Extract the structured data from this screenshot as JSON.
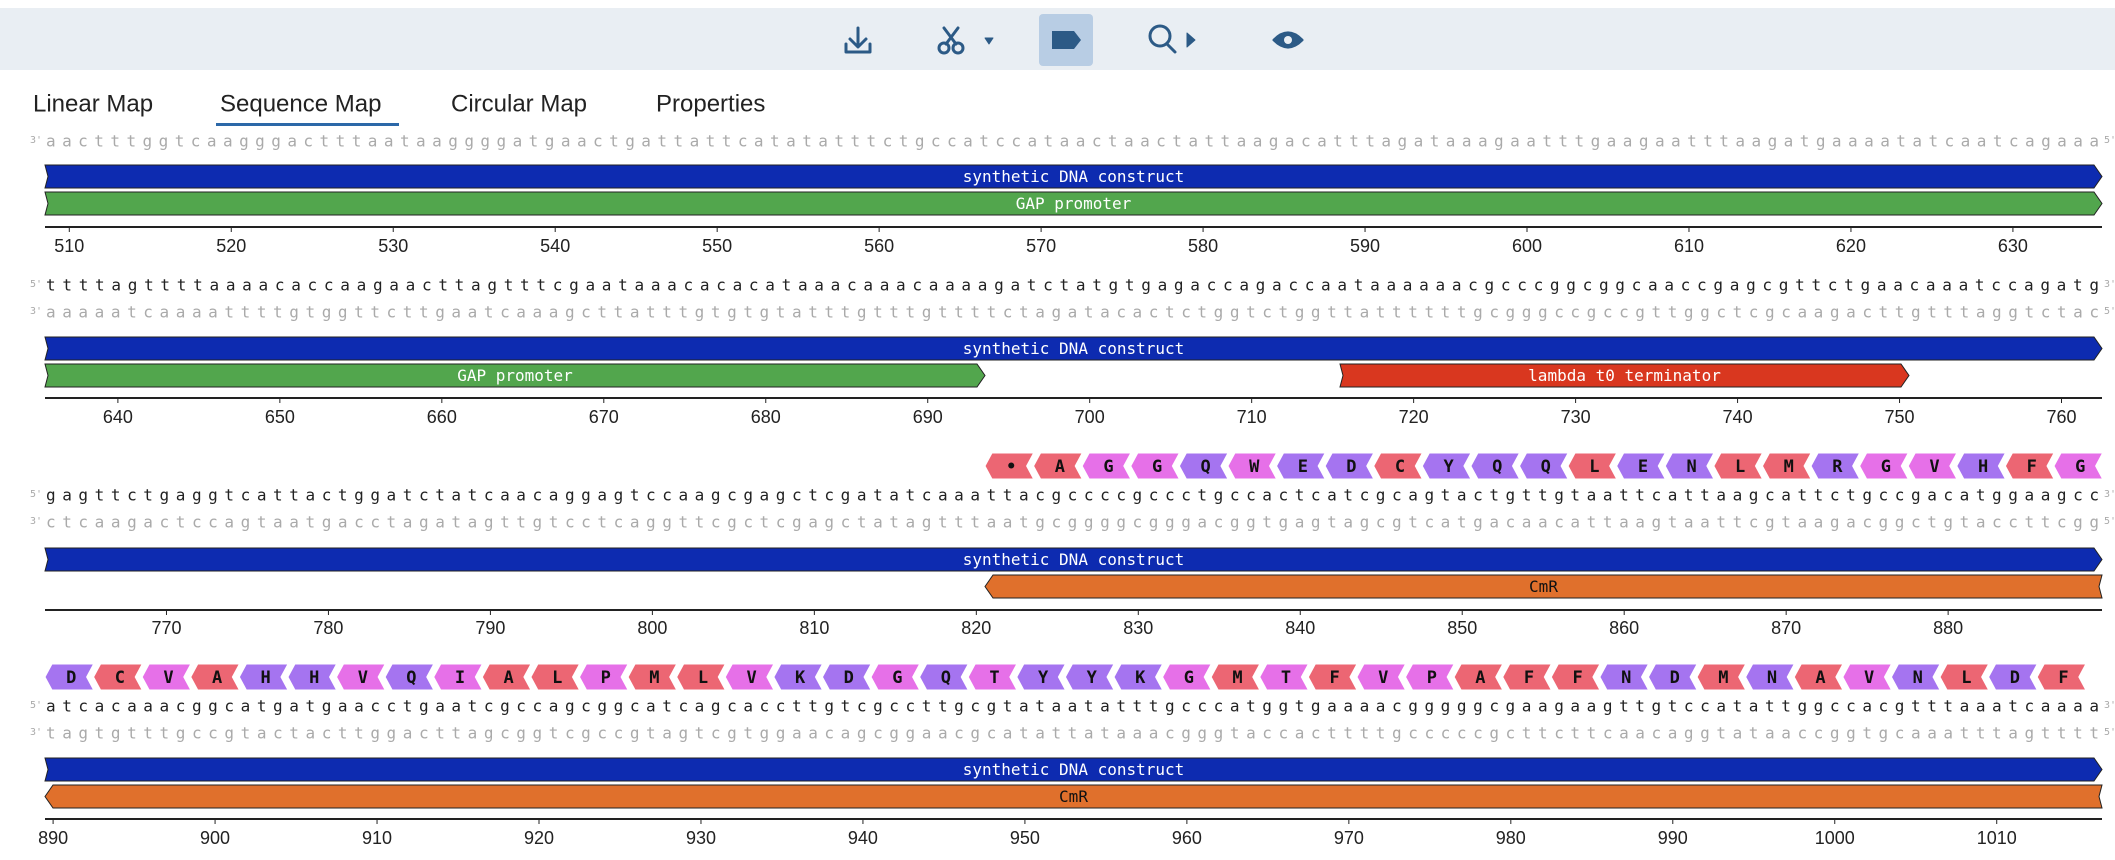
{
  "tabs": [
    "Linear Map",
    "Sequence Map",
    "Circular Map",
    "Properties"
  ],
  "strand_labels": {
    "five": "5'",
    "three": "3'"
  },
  "rows": [
    {
      "top": null,
      "bottom": "aactttggtcaagggactttaataaggggatgaactgattattcatatatttctgccatccataactaactattaagacatttagataaagaatttgaagaatttaagatgaaaatatcaatcagaaa",
      "annotations": [
        {
          "label": "synthetic DNA construct",
          "color": "#0d2bb0"
        },
        {
          "label": "GAP promoter",
          "color": "#52a64d"
        }
      ],
      "ticks": [
        510,
        520,
        530,
        540,
        550,
        560,
        570,
        580,
        590,
        600,
        610,
        620,
        630
      ],
      "amino_acids": []
    },
    {
      "top": "ttttagttttaaaacaccaagaacttagtttcgaataaacacacataaacaaacaaaagatctatgtgagaccagaccaataaaaaacgcccggcggcaaccgagcgttctgaacaaatccagatg",
      "bottom": "aaaaatcaaaattttgtggttcttgaatcaaagcttatttgtgtgtatttgtttgttttctagatacactctggtctggttattttttgcgggccgccgttggctcgcaagacttgtttaggtctac",
      "annotations": [
        {
          "label": "synthetic DNA construct",
          "color": "#0d2bb0"
        },
        {
          "label": "GAP promoter",
          "color": "#52a64d"
        },
        {
          "label": "lambda t0 terminator",
          "color": "#d9371f"
        }
      ],
      "ticks": [
        640,
        650,
        660,
        670,
        680,
        690,
        700,
        710,
        720,
        730,
        740,
        750,
        760
      ],
      "amino_acids": []
    },
    {
      "top": "gagttctgaggtcattactggatctatcaacaggagtccaagcgagctcgatatcaaattacgccccgccctgccactcatcgcagtactgttgtaattcattaagcattctgccgacatggaagcc",
      "bottom": "ctcaagactccagtaatgacctagatagttgtcctcaggttcgctcgagctatagtttaatgcggggcgggacggtgagtagcgtcatgacaacattaagtaattcgtaagacggctgtaccttcgg",
      "annotations": [
        {
          "label": "synthetic DNA construct",
          "color": "#0d2bb0"
        },
        {
          "label": "CmR",
          "color": "#e0702c"
        }
      ],
      "ticks": [
        770,
        780,
        790,
        800,
        810,
        820,
        830,
        840,
        850,
        860,
        870,
        880
      ],
      "amino_acids": [
        "•",
        "A",
        "G",
        "G",
        "Q",
        "W",
        "E",
        "D",
        "C",
        "Y",
        "Q",
        "Q",
        "L",
        "E",
        "N",
        "L",
        "M",
        "R",
        "G",
        "V",
        "H",
        "F",
        "G"
      ]
    },
    {
      "top": "atcacaaacggcatgatgaacctgaatcgccagcggcatcagcaccttgtcgccttgcgtataatatttgcccatggtgaaaacgggggcgaagaagttgtccatattggccacgtttaaatcaaaa",
      "bottom": "tagtgtttgccgtactacttggacttagcggtcgccgtagtcgtggaacagcggaacgcatattataaacgggtaccacttttgcccccgcttcttcaacaggtataaccggtgcaaatttagtttt",
      "annotations": [
        {
          "label": "synthetic DNA construct",
          "color": "#0d2bb0"
        },
        {
          "label": "CmR",
          "color": "#e0702c"
        }
      ],
      "ticks": [
        890,
        900,
        910,
        920,
        930,
        940,
        950,
        960,
        970,
        980,
        990,
        1000,
        1010
      ],
      "amino_acids": [
        "D",
        "C",
        "V",
        "A",
        "H",
        "H",
        "V",
        "Q",
        "I",
        "A",
        "L",
        "P",
        "M",
        "L",
        "V",
        "K",
        "D",
        "G",
        "Q",
        "T",
        "Y",
        "Y",
        "K",
        "G",
        "M",
        "T",
        "F",
        "V",
        "P",
        "A",
        "F",
        "F",
        "N",
        "D",
        "M",
        "N",
        "A",
        "V",
        "N",
        "L",
        "D",
        "F"
      ]
    }
  ]
}
